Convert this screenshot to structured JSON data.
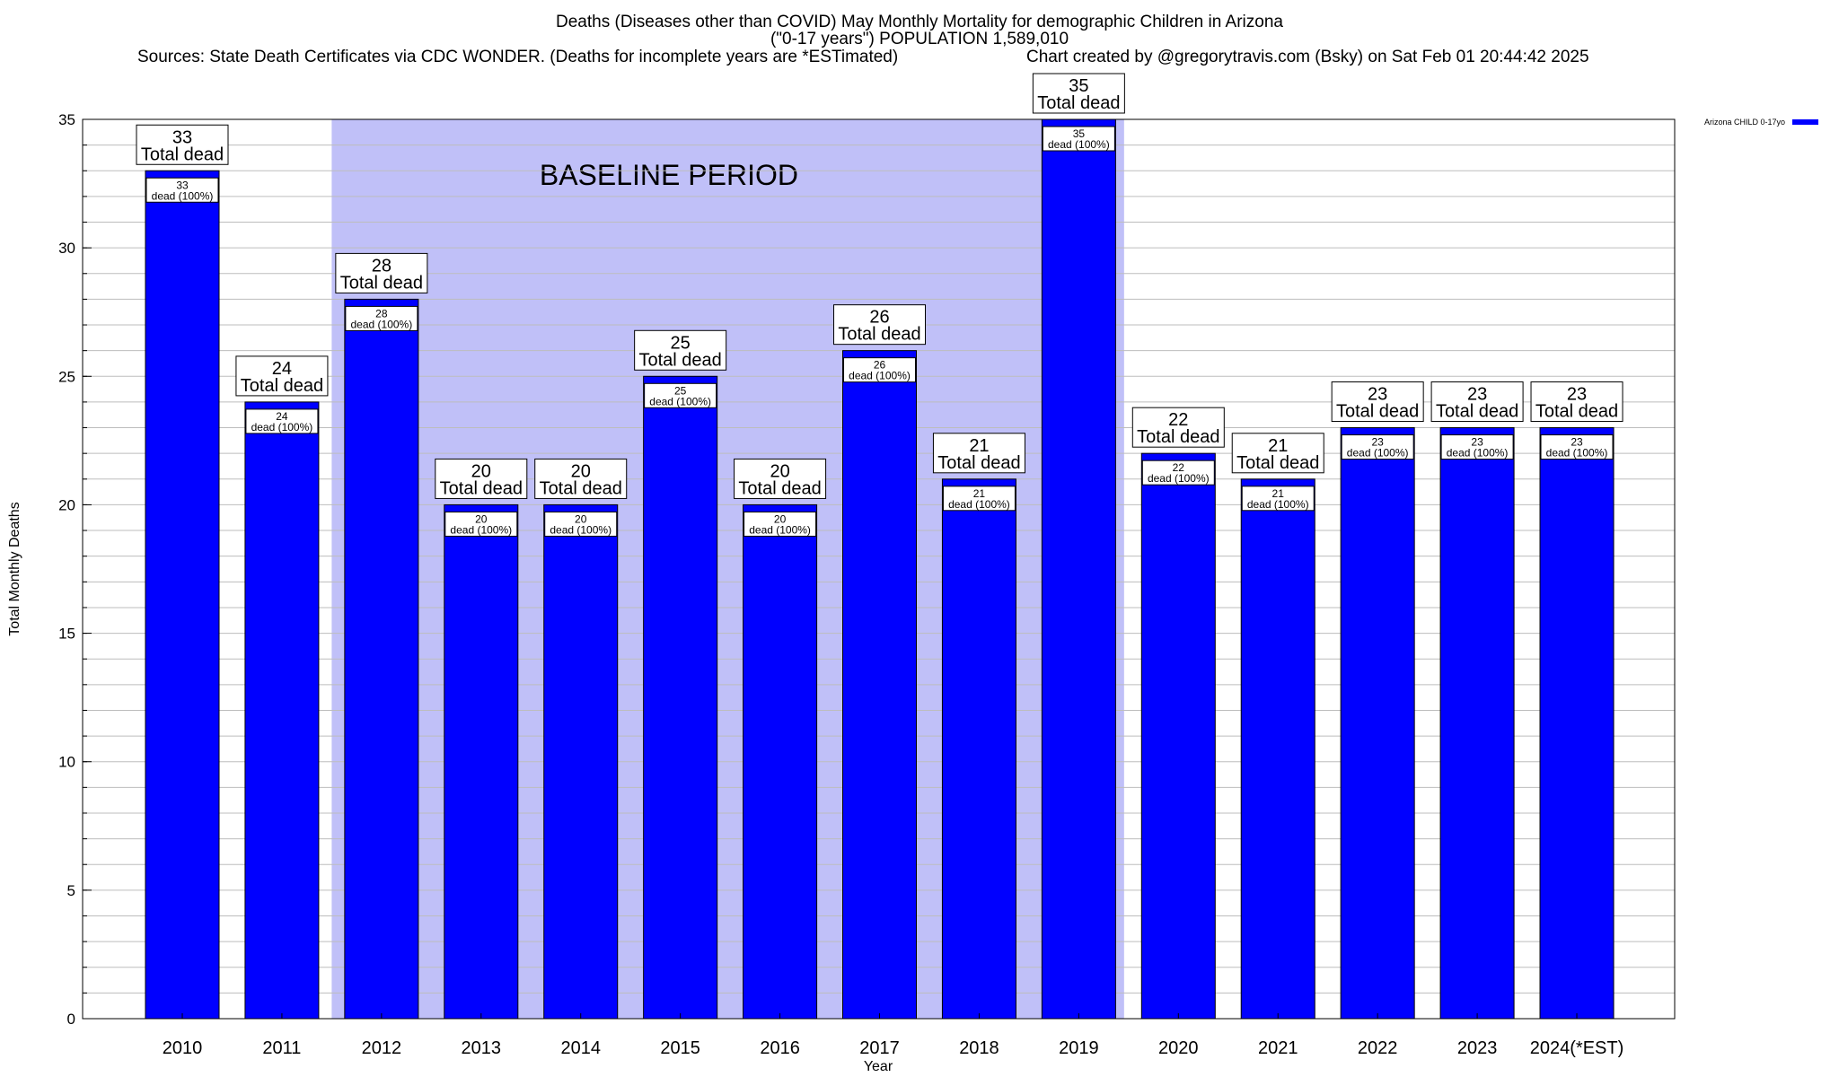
{
  "header": {
    "title_line1": "Deaths (Diseases other than COVID) May Monthly Mortality for demographic Children in Arizona",
    "title_line2": "(\"0-17 years\") POPULATION 1,589,010",
    "sources": "Sources: State Death Certificates via CDC WONDER. (Deaths for incomplete years are *ESTimated)",
    "credit": "Chart created by @gregorytravis.com (Bsky) on Sat Feb 01 20:44:42 2025"
  },
  "legend": {
    "label": "Arizona CHILD 0-17yo",
    "color": "#0000ff"
  },
  "chart_data": {
    "type": "bar",
    "xlabel": "Year",
    "ylabel": "Total Monthly Deaths",
    "ylim": [
      0,
      35
    ],
    "yticks": [
      0,
      5,
      10,
      15,
      20,
      25,
      30,
      35
    ],
    "grid": true,
    "legend_position": "top-right",
    "categories": [
      "2010",
      "2011",
      "2012",
      "2013",
      "2014",
      "2015",
      "2016",
      "2017",
      "2018",
      "2019",
      "2020",
      "2021",
      "2022",
      "2023",
      "2024(*EST)"
    ],
    "series": [
      {
        "name": "Arizona CHILD 0-17yo",
        "color": "#0000ff",
        "values": [
          33,
          24,
          28,
          20,
          20,
          25,
          20,
          26,
          21,
          35,
          22,
          21,
          23,
          23,
          23
        ]
      }
    ],
    "top_label_suffix": "Total dead",
    "inner_label_suffix": "dead (100%)",
    "baseline_period": {
      "label": "BASELINE PERIOD",
      "from": "2012",
      "to": "2019",
      "color": "#c0c0f8"
    }
  }
}
